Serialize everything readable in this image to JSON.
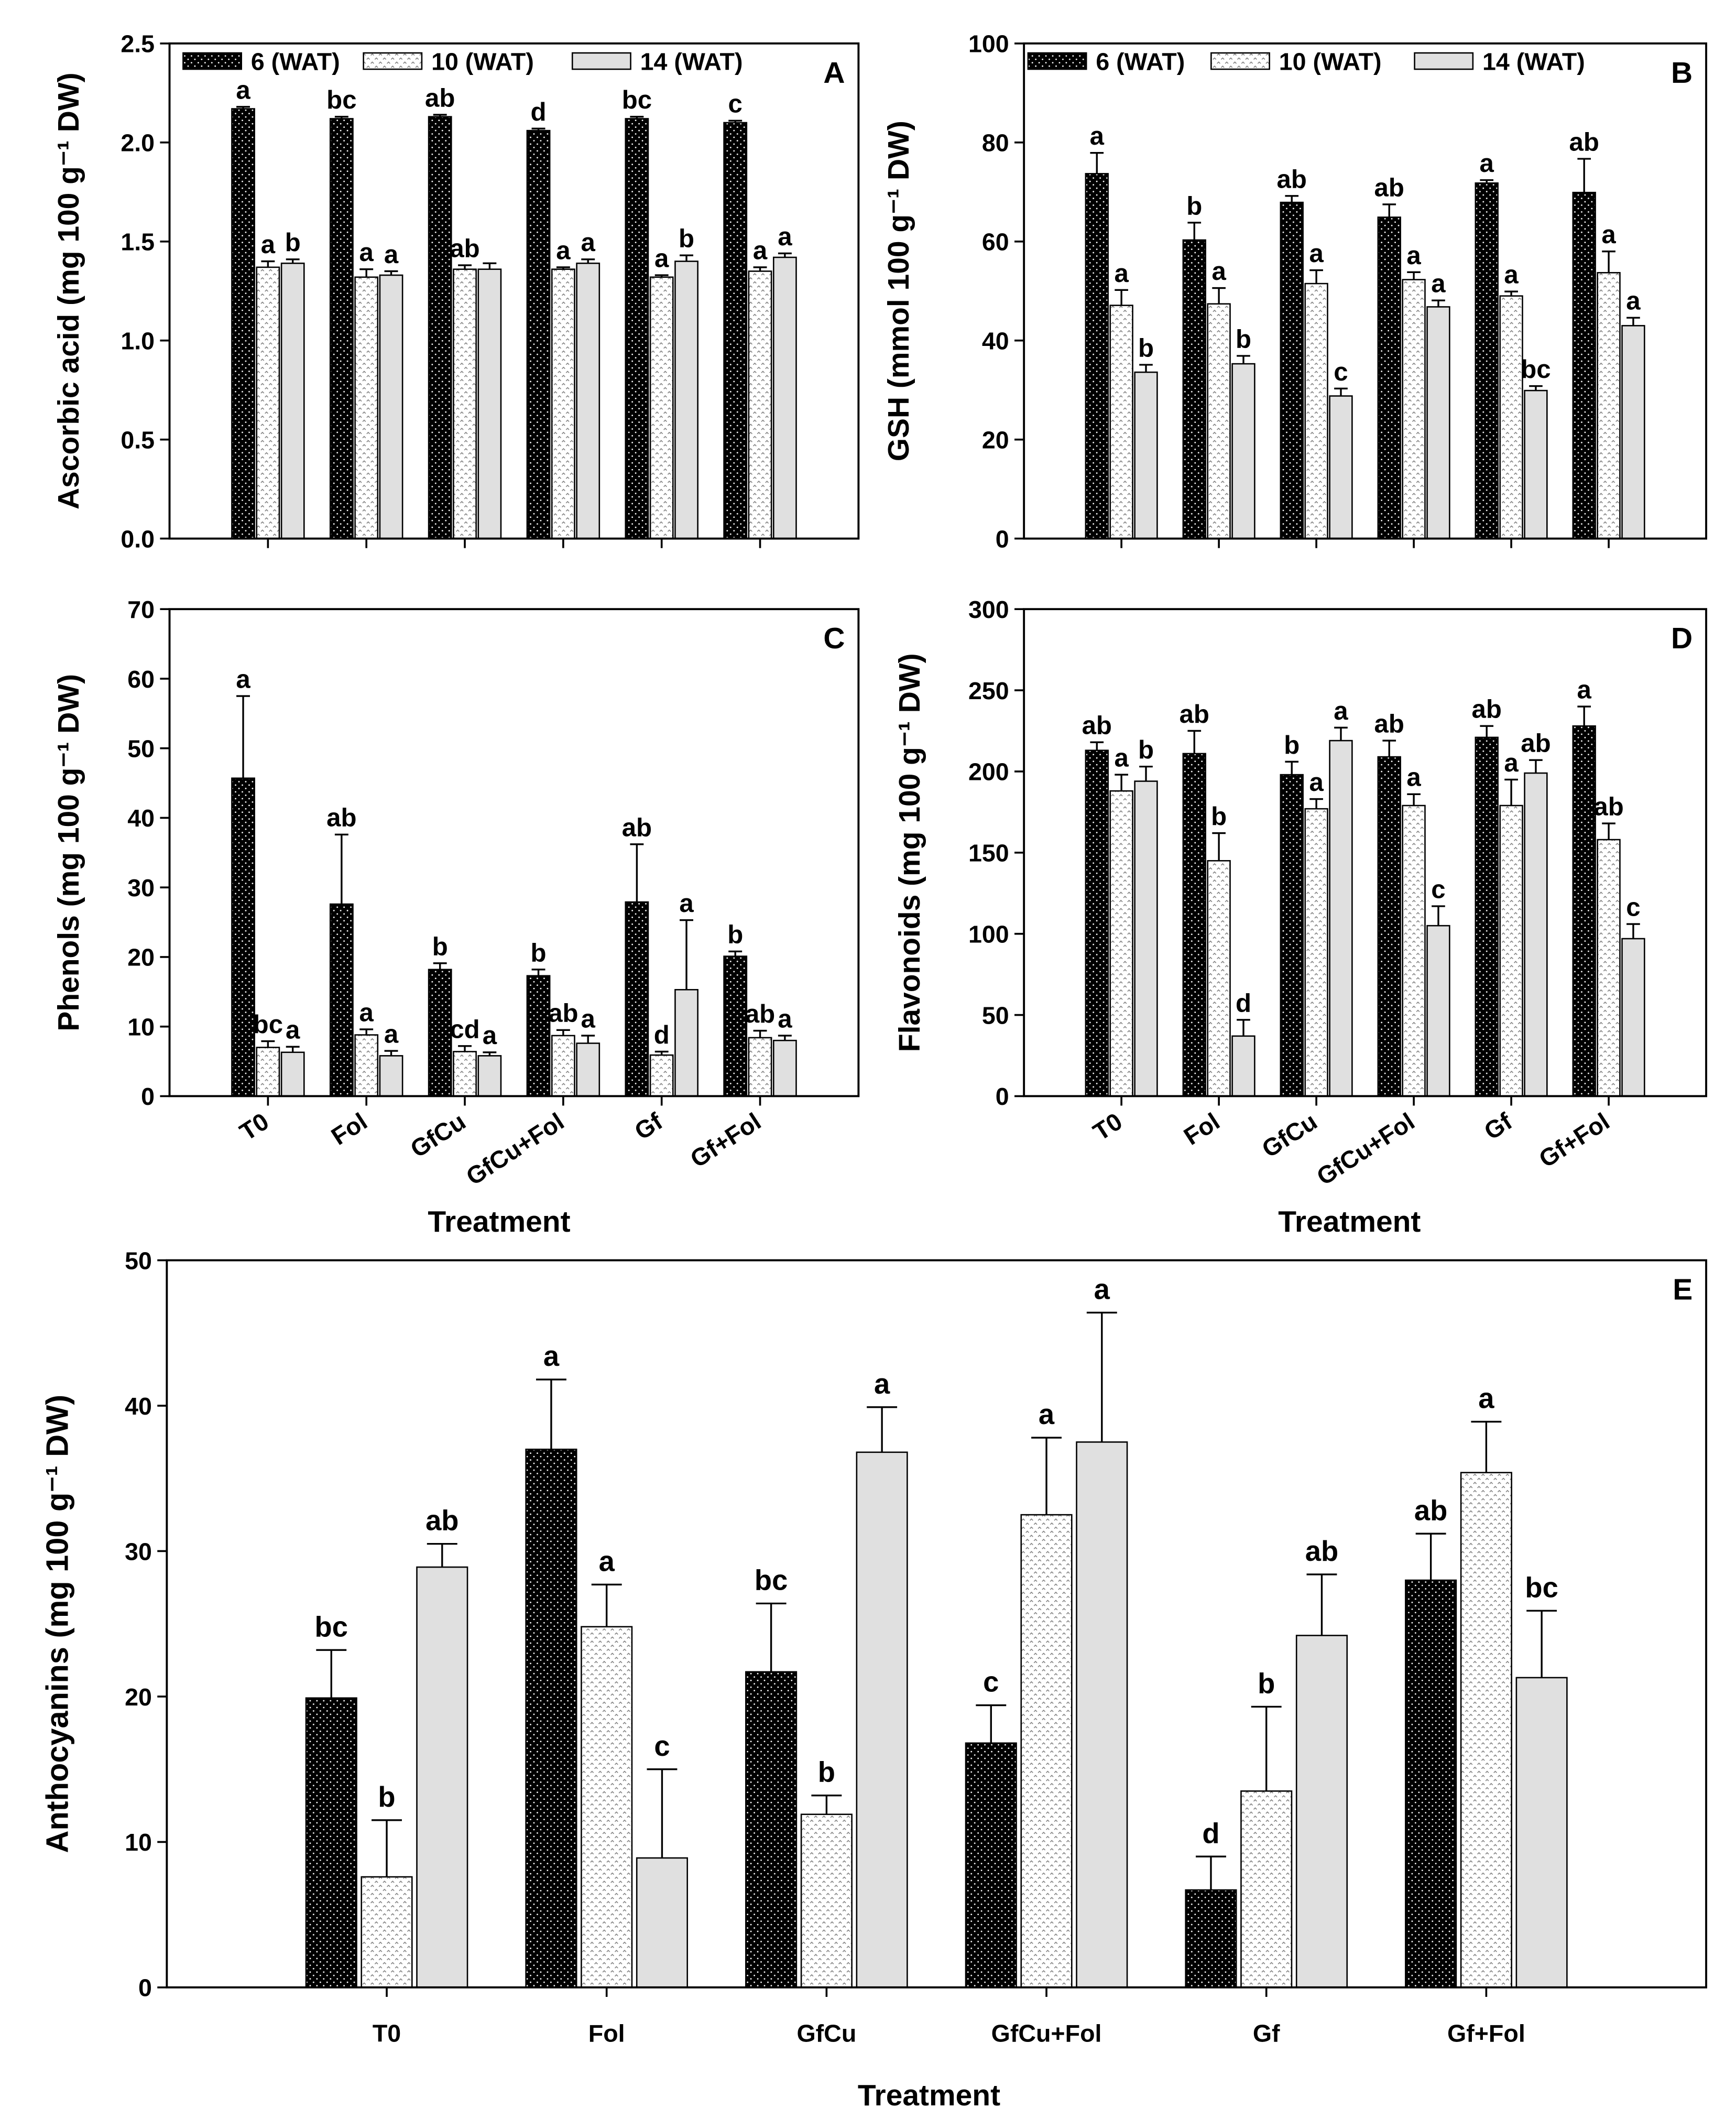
{
  "series_names": [
    "6 (WAT)",
    "10 (WAT)",
    "14 (WAT)"
  ],
  "categories": [
    "T0",
    "Fol",
    "GfCu",
    "GfCu+Fol",
    "Gf",
    "Gf+Fol"
  ],
  "colors": {
    "series_6_wat": "#000000",
    "series_10_wat": "#ffffff",
    "series_14_wat": "#e0e0e0",
    "pattern_dot": "#ffffff",
    "pattern_zigzag": "#7a7a7a"
  },
  "chart_data": [
    {
      "title": "A",
      "type": "bar",
      "ylabel": "Ascorbic acid (mg 100 g⁻¹ DW)",
      "ylim": [
        0,
        2.5
      ],
      "yticks": [
        "0.0",
        "0.5",
        "1.0",
        "1.5",
        "2.0",
        "2.5"
      ],
      "legend": "top-left",
      "grid": false,
      "series": [
        {
          "values": [
            2.17,
            2.12,
            2.13,
            2.06,
            2.12,
            2.1
          ],
          "errors": [
            0.01,
            0.01,
            0.01,
            0.01,
            0.01,
            0.01
          ],
          "labels": [
            "a",
            "bc",
            "ab",
            "d",
            "bc",
            "c"
          ]
        },
        {
          "values": [
            1.37,
            1.32,
            1.36,
            1.36,
            1.32,
            1.35
          ],
          "errors": [
            0.03,
            0.04,
            0.02,
            0.01,
            0.01,
            0.02
          ],
          "labels": [
            "a",
            "a",
            "ab",
            "a",
            "a",
            "a"
          ]
        },
        {
          "values": [
            1.39,
            1.33,
            1.36,
            1.39,
            1.4,
            1.42
          ],
          "errors": [
            0.02,
            0.02,
            0.03,
            0.02,
            0.03,
            0.02
          ],
          "labels": [
            "b",
            "a",
            null,
            "a",
            "b",
            "a"
          ]
        }
      ]
    },
    {
      "title": "B",
      "type": "bar",
      "ylabel": "GSH (mmol 100 g⁻¹ DW)",
      "ylim": [
        0,
        100
      ],
      "yticks": [
        "0",
        "20",
        "40",
        "60",
        "80",
        "100"
      ],
      "legend": "top-left",
      "grid": false,
      "series": [
        {
          "values": [
            73.7,
            60.3,
            67.9,
            64.9,
            71.8,
            69.9
          ],
          "errors": [
            4.2,
            3.5,
            1.3,
            2.6,
            0.6,
            6.8
          ],
          "labels": [
            "a",
            "b",
            "ab",
            "ab",
            "a",
            "ab"
          ]
        },
        {
          "values": [
            47.1,
            47.4,
            51.5,
            52.3,
            49.0,
            53.7
          ],
          "errors": [
            3.1,
            3.2,
            2.7,
            1.5,
            0.9,
            4.3
          ],
          "labels": [
            "a",
            "a",
            "a",
            "a",
            "a",
            "a"
          ]
        },
        {
          "values": [
            33.6,
            35.3,
            28.8,
            46.8,
            29.9,
            43.0
          ],
          "errors": [
            1.5,
            1.6,
            1.5,
            1.3,
            0.9,
            1.6
          ],
          "labels": [
            "b",
            "b",
            "c",
            "a",
            "bc",
            "a"
          ]
        }
      ]
    },
    {
      "title": "C",
      "type": "bar",
      "ylabel": "Phenols (mg 100 g⁻¹ DW)",
      "xlabel": "Treatment",
      "ylim": [
        0,
        70
      ],
      "yticks": [
        "0",
        "10",
        "20",
        "30",
        "40",
        "50",
        "60",
        "70"
      ],
      "grid": false,
      "series": [
        {
          "values": [
            45.7,
            27.6,
            18.2,
            17.3,
            27.9,
            20.1
          ],
          "errors": [
            11.8,
            10.0,
            0.9,
            0.9,
            8.3,
            0.7
          ],
          "labels": [
            "a",
            "ab",
            "b",
            "b",
            "ab",
            "b"
          ]
        },
        {
          "values": [
            7.0,
            8.8,
            6.4,
            8.7,
            5.9,
            8.4
          ],
          "errors": [
            0.9,
            0.8,
            0.8,
            0.8,
            0.5,
            1.0
          ],
          "labels": [
            "bc",
            "a",
            "cd",
            "ab",
            "d",
            "ab"
          ]
        },
        {
          "values": [
            6.3,
            5.8,
            5.8,
            7.6,
            15.3,
            8.0
          ],
          "errors": [
            0.8,
            0.7,
            0.5,
            1.1,
            10.0,
            0.7
          ],
          "labels": [
            "a",
            "a",
            "a",
            "a",
            "a",
            "a"
          ]
        }
      ]
    },
    {
      "title": "D",
      "type": "bar",
      "ylabel": "Flavonoids (mg 100 g⁻¹ DW)",
      "xlabel": "Treatment",
      "ylim": [
        0,
        300
      ],
      "yticks": [
        "0",
        "50",
        "100",
        "150",
        "200",
        "250",
        "300"
      ],
      "grid": false,
      "series": [
        {
          "values": [
            213,
            211,
            198,
            209,
            221,
            228
          ],
          "errors": [
            5,
            14,
            8,
            10,
            7,
            12
          ],
          "labels": [
            "ab",
            "ab",
            "b",
            "ab",
            "ab",
            "a"
          ]
        },
        {
          "values": [
            188,
            145,
            177,
            179,
            179,
            158
          ],
          "errors": [
            10,
            17,
            6,
            7,
            16,
            10
          ],
          "labels": [
            "a",
            "b",
            "a",
            "a",
            "a",
            "ab"
          ]
        },
        {
          "values": [
            194,
            37,
            219,
            105,
            199,
            97
          ],
          "errors": [
            9,
            10,
            8,
            12,
            8,
            9
          ],
          "labels": [
            "b",
            "d",
            "a",
            "c",
            "ab",
            "c"
          ]
        }
      ]
    },
    {
      "title": "E",
      "type": "bar",
      "ylabel": "Anthocyanins (mg 100 g⁻¹ DW)",
      "xlabel": "Treatment",
      "ylim": [
        0,
        50
      ],
      "yticks": [
        "0",
        "10",
        "20",
        "30",
        "40",
        "50"
      ],
      "grid": false,
      "series": [
        {
          "values": [
            19.9,
            37.0,
            21.7,
            16.8,
            6.7,
            28.0
          ],
          "errors": [
            3.3,
            4.8,
            4.7,
            2.6,
            2.3,
            3.2
          ],
          "labels": [
            "bc",
            "a",
            "bc",
            "c",
            "d",
            "ab"
          ]
        },
        {
          "values": [
            7.6,
            24.8,
            11.9,
            32.5,
            13.5,
            35.4
          ],
          "errors": [
            3.9,
            2.9,
            1.3,
            5.3,
            5.8,
            3.5
          ],
          "labels": [
            "b",
            "a",
            "b",
            "a",
            "b",
            "a"
          ]
        },
        {
          "values": [
            28.9,
            8.9,
            36.8,
            37.5,
            24.2,
            21.3
          ],
          "errors": [
            1.6,
            6.1,
            3.1,
            8.9,
            4.2,
            4.6
          ],
          "labels": [
            "ab",
            "c",
            "a",
            "a",
            "ab",
            "bc"
          ]
        }
      ]
    }
  ]
}
